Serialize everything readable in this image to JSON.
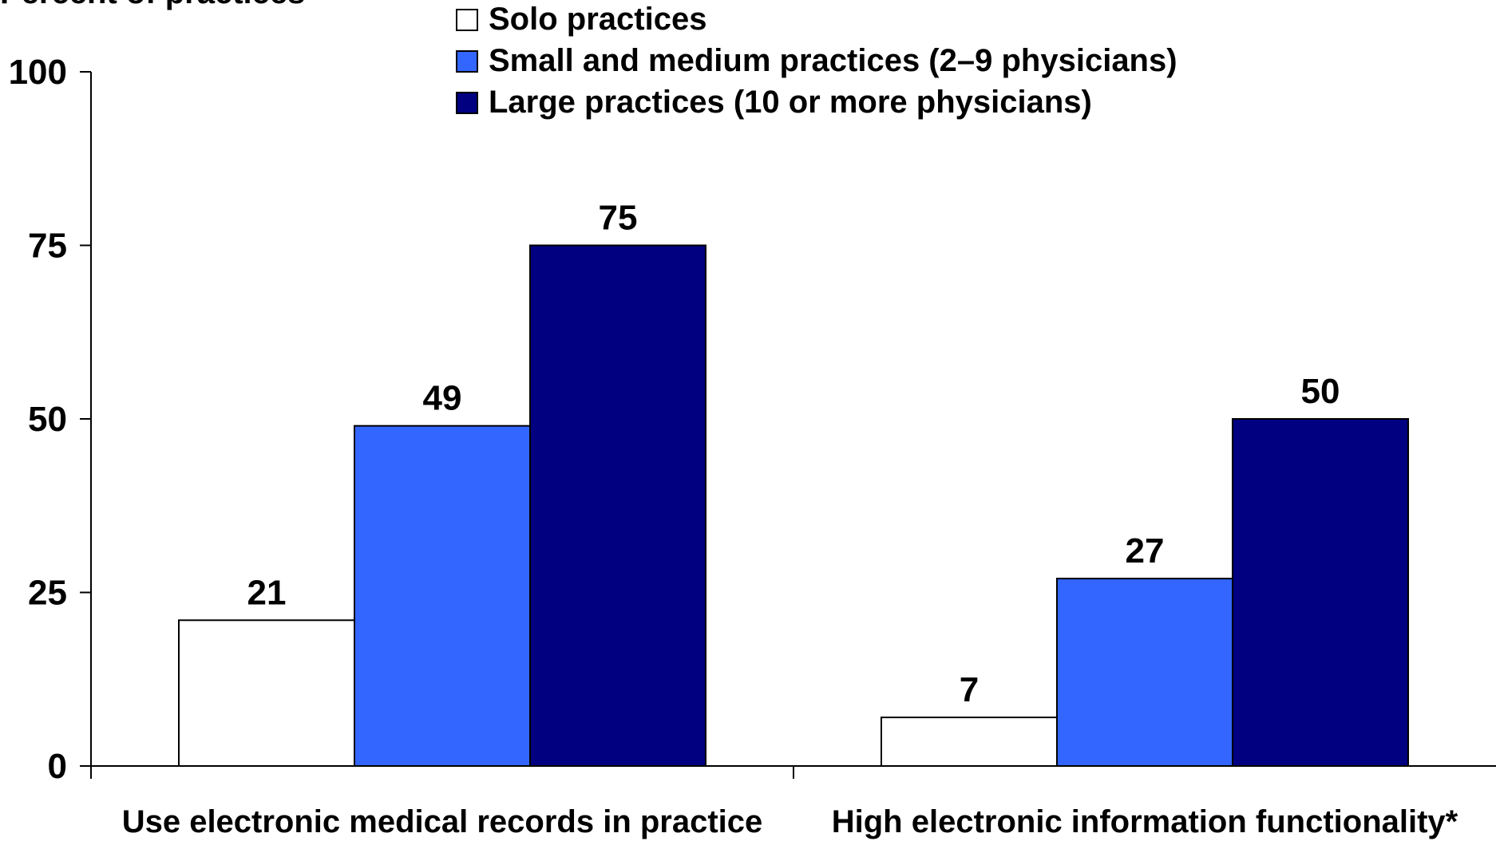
{
  "chart_data": {
    "type": "bar",
    "ylabel": "Percent of practices",
    "ylim": [
      0,
      100
    ],
    "yticks": [
      0,
      25,
      50,
      75,
      100
    ],
    "grid": false,
    "legend_position": "top",
    "categories": [
      "Use electronic medical records in practice",
      "High electronic information functionality*"
    ],
    "series": [
      {
        "name": "Solo practices",
        "color": "#ffffff",
        "values": [
          21,
          7
        ]
      },
      {
        "name": "Small and medium practices (2–9 physicians)",
        "color": "#3366ff",
        "values": [
          49,
          27
        ]
      },
      {
        "name": "Large practices (10 or more physicians)",
        "color": "#000080",
        "values": [
          75,
          50
        ]
      }
    ]
  }
}
